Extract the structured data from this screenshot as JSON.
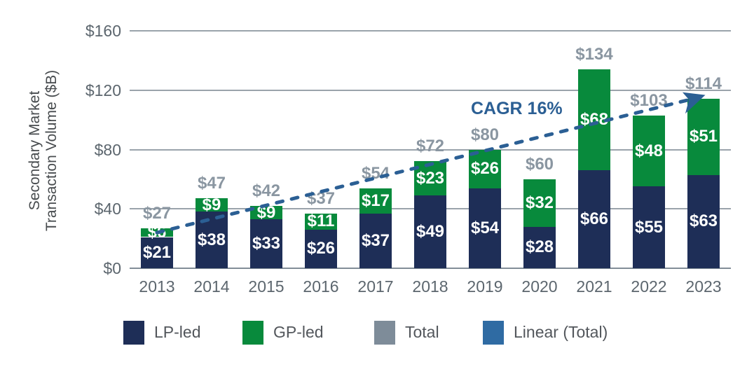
{
  "chart_data": {
    "type": "bar",
    "stacked": true,
    "categories": [
      "2013",
      "2014",
      "2015",
      "2016",
      "2017",
      "2018",
      "2019",
      "2020",
      "2021",
      "2022",
      "2023"
    ],
    "series": [
      {
        "name": "LP-led",
        "color": "#1e2e57",
        "values": [
          21,
          38,
          33,
          26,
          37,
          49,
          54,
          28,
          66,
          55,
          63
        ],
        "labels": [
          "$21",
          "$38",
          "$33",
          "$26",
          "$37",
          "$49",
          "$54",
          "$28",
          "$66",
          "$55",
          "$63"
        ]
      },
      {
        "name": "GP-led",
        "color": "#088a3c",
        "values": [
          6,
          9,
          9,
          11,
          17,
          23,
          26,
          32,
          68,
          48,
          51
        ],
        "labels": [
          "$6",
          "$9",
          "$9",
          "$11",
          "$17",
          "$23",
          "$26",
          "$32",
          "$68",
          "$48",
          "$51"
        ]
      }
    ],
    "totals": {
      "name": "Total",
      "label_color": "#8a96a1",
      "values": [
        27,
        47,
        42,
        37,
        54,
        72,
        80,
        60,
        134,
        103,
        114
      ],
      "labels": [
        "$27",
        "$47",
        "$42",
        "$37",
        "$54",
        "$72",
        "$80",
        "$60",
        "$134",
        "$103",
        "$114"
      ]
    },
    "trendline": {
      "name": "Linear (Total)",
      "annotation": "CAGR 16%",
      "color": "#2b5f94",
      "start_value": 24,
      "end_value": 116,
      "style": "dashed",
      "arrow": true
    },
    "ylabel_line1": "Secondary Market",
    "ylabel_line2": "Transaction Volume ($B)",
    "ylim": [
      0,
      160
    ],
    "yticks": [
      {
        "label": "$0",
        "value": 0
      },
      {
        "label": "$40",
        "value": 40
      },
      {
        "label": "$80",
        "value": 80
      },
      {
        "label": "$120",
        "value": 120
      },
      {
        "label": "$160",
        "value": 160
      }
    ],
    "grid": "horizontal",
    "legend_position": "bottom",
    "legend": [
      {
        "label": "LP-led",
        "color": "#1e2e57"
      },
      {
        "label": "GP-led",
        "color": "#088a3c"
      },
      {
        "label": "Total",
        "color": "#7e8c99"
      },
      {
        "label": "Linear (Total)",
        "color": "#2f6ba3"
      }
    ]
  }
}
